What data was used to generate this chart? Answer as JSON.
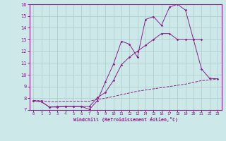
{
  "xlabel": "Windchill (Refroidissement éolien,°C)",
  "xlim": [
    -0.5,
    23.5
  ],
  "ylim": [
    7,
    16
  ],
  "xticks": [
    0,
    1,
    2,
    3,
    4,
    5,
    6,
    7,
    8,
    9,
    10,
    11,
    12,
    13,
    14,
    15,
    16,
    17,
    18,
    19,
    20,
    21,
    22,
    23
  ],
  "yticks": [
    7,
    8,
    9,
    10,
    11,
    12,
    13,
    14,
    15,
    16
  ],
  "background_color": "#cce8e8",
  "grid_color": "#aacccc",
  "line_color": "#882288",
  "line1_x": [
    0,
    1,
    2,
    3,
    4,
    5,
    6,
    7,
    8,
    9,
    10,
    11,
    12,
    13,
    14,
    15,
    16,
    17,
    18,
    19,
    20,
    21,
    22,
    23
  ],
  "line1_y": [
    7.8,
    7.7,
    7.25,
    7.25,
    7.3,
    7.3,
    7.3,
    7.3,
    8.05,
    8.5,
    9.5,
    10.85,
    11.5,
    12.0,
    12.5,
    13.0,
    13.5,
    13.5,
    13.0,
    13.0,
    13.0,
    10.5,
    9.7,
    9.65
  ],
  "line2_x": [
    0,
    1,
    2,
    3,
    4,
    5,
    6,
    7,
    8,
    9,
    10,
    11,
    12,
    13,
    14,
    15,
    16,
    17,
    18,
    19,
    20,
    21
  ],
  "line2_y": [
    7.8,
    7.7,
    7.25,
    7.3,
    7.3,
    7.3,
    7.3,
    7.05,
    7.8,
    9.4,
    10.9,
    12.85,
    12.6,
    11.5,
    14.7,
    14.95,
    14.2,
    15.75,
    16.0,
    15.5,
    13.0,
    13.0
  ],
  "line3_x": [
    0,
    1,
    2,
    3,
    4,
    5,
    6,
    7,
    8,
    9,
    10,
    11,
    12,
    13,
    14,
    15,
    16,
    17,
    18,
    19,
    20,
    21,
    22,
    23
  ],
  "line3_y": [
    7.8,
    7.8,
    7.7,
    7.7,
    7.75,
    7.75,
    7.75,
    7.75,
    7.9,
    8.0,
    8.15,
    8.3,
    8.45,
    8.6,
    8.7,
    8.8,
    8.9,
    9.0,
    9.1,
    9.2,
    9.35,
    9.5,
    9.55,
    9.65
  ]
}
